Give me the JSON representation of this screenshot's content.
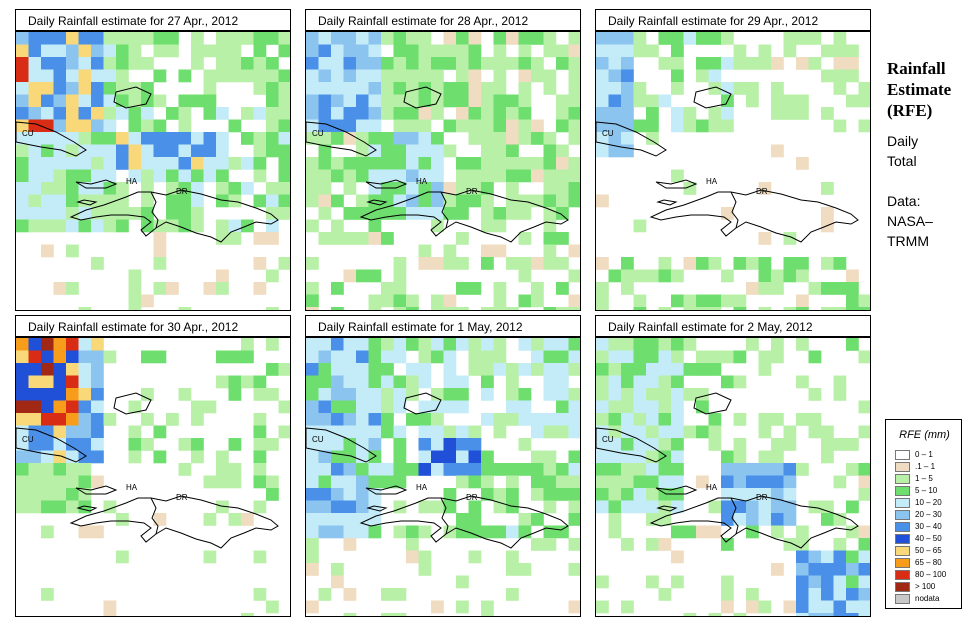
{
  "panels": [
    {
      "title": "Daily Rainfall estimate for  27 Apr., 2012",
      "pattern": "p27"
    },
    {
      "title": "Daily Rainfall estimate for  28 Apr., 2012",
      "pattern": "p28"
    },
    {
      "title": "Daily Rainfall estimate for  29 Apr., 2012",
      "pattern": "p29"
    },
    {
      "title": "Daily Rainfall estimate for  30 Apr., 2012",
      "pattern": "p30"
    },
    {
      "title": "Daily Rainfall estimate for  1 May, 2012",
      "pattern": "p01"
    },
    {
      "title": "Daily Rainfall estimate for  2 May, 2012",
      "pattern": "p02"
    }
  ],
  "map_labels": {
    "cuba": "CU",
    "haiti": "HA",
    "dominican_republic": "DR"
  },
  "side": {
    "title_line1": "Rainfall",
    "title_line2": "Estimate",
    "title_line3": "(RFE)",
    "daily_line1": "Daily",
    "daily_line2": "Total",
    "data_line1": "Data:",
    "data_line2": "NASA–",
    "data_line3": "TRMM"
  },
  "legend": {
    "title": "RFE (mm)",
    "items": [
      {
        "label": "0 – 1",
        "color": "#ffffff"
      },
      {
        "label": ".1 – 1",
        "color": "#f0dcc0"
      },
      {
        "label": "1 – 5",
        "color": "#b8f0a8"
      },
      {
        "label": "5 – 10",
        "color": "#6ede6e"
      },
      {
        "label": "10 – 20",
        "color": "#c4ecf8"
      },
      {
        "label": "20 – 30",
        "color": "#8cc4f0"
      },
      {
        "label": "30 – 40",
        "color": "#4a90e8"
      },
      {
        "label": "40 – 50",
        "color": "#2050d8"
      },
      {
        "label": "50 – 65",
        "color": "#f8d878"
      },
      {
        "label": "65 – 80",
        "color": "#f89c1c"
      },
      {
        "label": "80 – 100",
        "color": "#d82c14"
      },
      {
        "label": "> 100",
        "color": "#a02814"
      },
      {
        "label": "nodata",
        "color": "#c8c8c8"
      }
    ]
  }
}
